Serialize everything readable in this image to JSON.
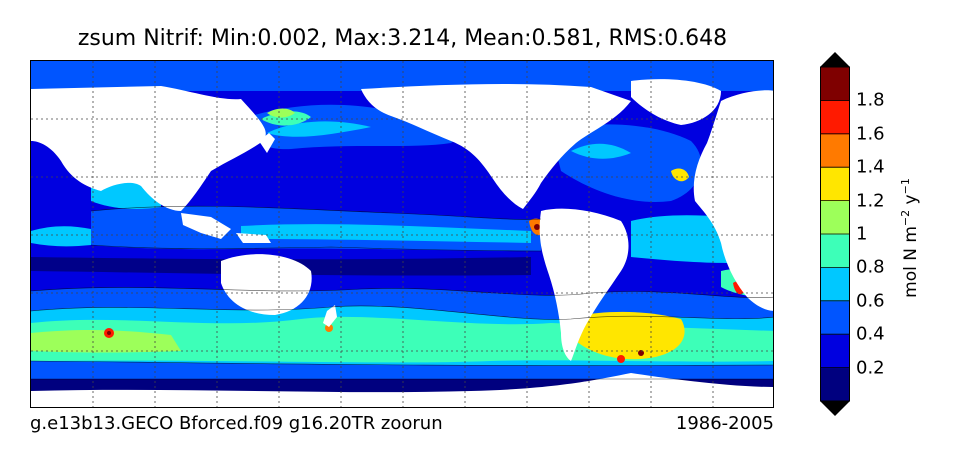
{
  "title": "zsum Nitrif: Min:0.002, Max:3.214, Mean:0.581, RMS:0.648",
  "footer": {
    "run": "g.e13b13.GECO Bforced.f09 g16.20TR zoorun",
    "period": "1986-2005"
  },
  "colorbar": {
    "label_text": "mol N m",
    "exp1": "−2",
    "mid": " y",
    "exp2": "−1",
    "ticks": [
      "0.2",
      "0.4",
      "0.6",
      "0.8",
      "1",
      "1.2",
      "1.4",
      "1.6",
      "1.8"
    ],
    "colors": [
      "#00007f",
      "#0000e0",
      "#0055ff",
      "#00c8ff",
      "#3dffb8",
      "#9dff5a",
      "#ffe600",
      "#ff7a00",
      "#ff1a00",
      "#7f0000"
    ],
    "extend": "both"
  },
  "map": {
    "projection": "cylindrical, Pacific-centred",
    "land_color": "#ffffff",
    "gridlines": true
  }
}
